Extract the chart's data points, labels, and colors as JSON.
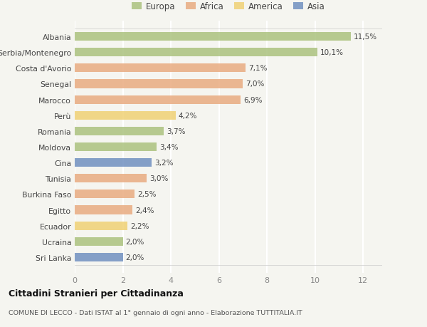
{
  "categories": [
    "Albania",
    "Serbia/Montenegro",
    "Costa d'Avorio",
    "Senegal",
    "Marocco",
    "Perù",
    "Romania",
    "Moldova",
    "Cina",
    "Tunisia",
    "Burkina Faso",
    "Egitto",
    "Ecuador",
    "Ucraina",
    "Sri Lanka"
  ],
  "values": [
    11.5,
    10.1,
    7.1,
    7.0,
    6.9,
    4.2,
    3.7,
    3.4,
    3.2,
    3.0,
    2.5,
    2.4,
    2.2,
    2.0,
    2.0
  ],
  "labels": [
    "11,5%",
    "10,1%",
    "7,1%",
    "7,0%",
    "6,9%",
    "4,2%",
    "3,7%",
    "3,4%",
    "3,2%",
    "3,0%",
    "2,5%",
    "2,4%",
    "2,2%",
    "2,0%",
    "2,0%"
  ],
  "continents": [
    "Europa",
    "Europa",
    "Africa",
    "Africa",
    "Africa",
    "America",
    "Europa",
    "Europa",
    "Asia",
    "Africa",
    "Africa",
    "Africa",
    "America",
    "Europa",
    "Asia"
  ],
  "colors": {
    "Europa": "#a8c07a",
    "Africa": "#e8a87c",
    "America": "#f0d070",
    "Asia": "#6b8cbf"
  },
  "legend_order": [
    "Europa",
    "Africa",
    "America",
    "Asia"
  ],
  "title1": "Cittadini Stranieri per Cittadinanza",
  "title2": "COMUNE DI LECCO - Dati ISTAT al 1° gennaio di ogni anno - Elaborazione TUTTITALIA.IT",
  "xlim": [
    0,
    12.8
  ],
  "xticks": [
    0,
    2,
    4,
    6,
    8,
    10,
    12
  ],
  "background_color": "#f5f5f0",
  "bar_height": 0.55
}
